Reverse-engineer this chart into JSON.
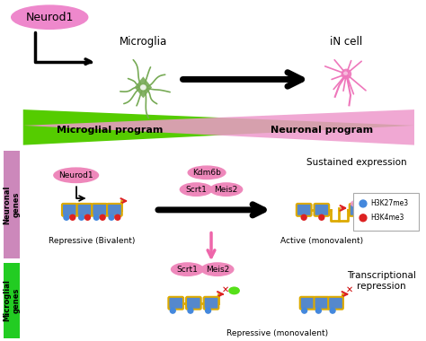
{
  "background_color": "#ffffff",
  "fig_width": 4.74,
  "fig_height": 3.8,
  "neurod1_label": "Neurod1",
  "microglia_label": "Microglia",
  "iN_label": "iN cell",
  "microglial_program": "Microglial program",
  "neuronal_program": "Neuronal program",
  "sustained_expr": "Sustained expression",
  "repressive_bivalent": "Repressive (Bivalent)",
  "active_monovalent": "Active (monovalent)",
  "transcriptional_repression": "Transcriptional\nrepression",
  "repressive_monovalent": "Repressive (monovalent)",
  "neuronal_genes": "Neuronal\ngenes",
  "microglial_genes": "Microglial\ngenes",
  "kdm6b_label": "Kdm6b",
  "scrt1_label": "Scrt1",
  "meis2_label": "Meis2",
  "scrt1_label2": "Scrt1",
  "meis2_label2": "Meis2",
  "legend_h3k27": "H3K27me3",
  "legend_h3k4": "H3K4me3",
  "green_tri_color": "#55cc00",
  "pink_tri_color": "#ee99cc",
  "blue_nuc_color": "#5588cc",
  "orange_dna_color": "#ddaa00",
  "blue_dot_color": "#4488dd",
  "red_dot_color": "#dd2222",
  "neurod1_pill_color": "#ee88bb",
  "pink_blob_color": "#ee99cc",
  "green_blob_color": "#44dd00",
  "pink_arrow_color": "#ee66aa",
  "neuronal_bar_color": "#cc88bb",
  "microglial_bar_color": "#22cc22",
  "microglia_color": "#77aa55",
  "neuron_color": "#ee77bb",
  "neurod1_bg_color": "#ee88cc"
}
